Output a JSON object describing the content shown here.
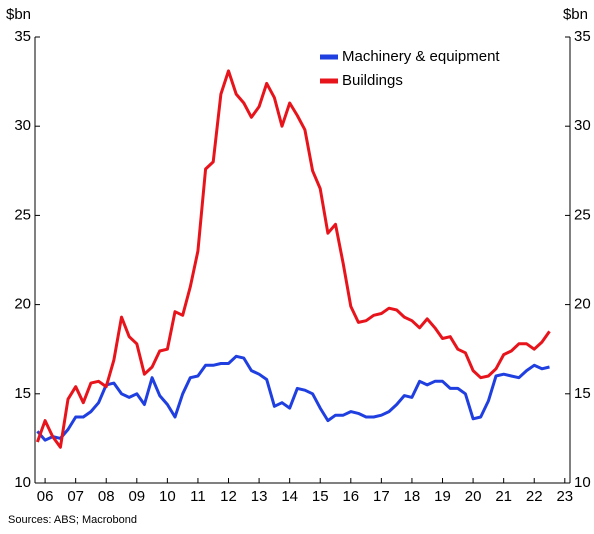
{
  "chart_data": {
    "type": "line",
    "ylabel": "$bn",
    "y2label": "$bn",
    "source": "Sources: ABS; Macrobond",
    "xlim": [
      2005.67,
      2023.17
    ],
    "xticks": [
      {
        "value": 2006,
        "label": "06"
      },
      {
        "value": 2007,
        "label": "07"
      },
      {
        "value": 2008,
        "label": "08"
      },
      {
        "value": 2009,
        "label": "09"
      },
      {
        "value": 2010,
        "label": "10"
      },
      {
        "value": 2011,
        "label": "11"
      },
      {
        "value": 2012,
        "label": "12"
      },
      {
        "value": 2013,
        "label": "13"
      },
      {
        "value": 2014,
        "label": "14"
      },
      {
        "value": 2015,
        "label": "15"
      },
      {
        "value": 2016,
        "label": "16"
      },
      {
        "value": 2017,
        "label": "17"
      },
      {
        "value": 2018,
        "label": "18"
      },
      {
        "value": 2019,
        "label": "19"
      },
      {
        "value": 2020,
        "label": "20"
      },
      {
        "value": 2021,
        "label": "21"
      },
      {
        "value": 2022,
        "label": "22"
      },
      {
        "value": 2023,
        "label": "23"
      }
    ],
    "ylim": [
      10,
      35
    ],
    "yticks": [
      10,
      15,
      20,
      25,
      30,
      35
    ],
    "y2lim": [
      10,
      35
    ],
    "y2ticks": [
      10,
      15,
      20,
      25,
      30,
      35
    ],
    "x": [
      2005.75,
      2006,
      2006.25,
      2006.5,
      2006.75,
      2007,
      2007.25,
      2007.5,
      2007.75,
      2008,
      2008.25,
      2008.5,
      2008.75,
      2009,
      2009.25,
      2009.5,
      2009.75,
      2010,
      2010.25,
      2010.5,
      2010.75,
      2011,
      2011.25,
      2011.5,
      2011.75,
      2012,
      2012.25,
      2012.5,
      2012.75,
      2013,
      2013.25,
      2013.5,
      2013.75,
      2014,
      2014.25,
      2014.5,
      2014.75,
      2015,
      2015.25,
      2015.5,
      2015.75,
      2016,
      2016.25,
      2016.5,
      2016.75,
      2017,
      2017.25,
      2017.5,
      2017.75,
      2018,
      2018.25,
      2018.5,
      2018.75,
      2019,
      2019.25,
      2019.5,
      2019.75,
      2020,
      2020.25,
      2020.5,
      2020.75,
      2021,
      2021.25,
      2021.5,
      2021.75,
      2022,
      2022.25,
      2022.5
    ],
    "legend": "upper right",
    "series": [
      {
        "name": "Machinery & equipment",
        "color": "#1f3fe0",
        "values": [
          12.9,
          12.4,
          12.6,
          12.5,
          13.0,
          13.7,
          13.7,
          14.0,
          14.5,
          15.5,
          15.6,
          15.0,
          14.8,
          15.0,
          14.4,
          15.9,
          14.9,
          14.4,
          13.7,
          15.0,
          15.9,
          16.0,
          16.6,
          16.6,
          16.7,
          16.7,
          17.1,
          17.0,
          16.3,
          16.1,
          15.8,
          14.3,
          14.5,
          14.2,
          15.3,
          15.2,
          15.0,
          14.2,
          13.5,
          13.8,
          13.8,
          14.0,
          13.9,
          13.7,
          13.7,
          13.8,
          14.0,
          14.4,
          14.9,
          14.8,
          15.7,
          15.5,
          15.7,
          15.7,
          15.3,
          15.3,
          15.0,
          13.6,
          13.7,
          14.6,
          16.0,
          16.1,
          16.0,
          15.9,
          16.3,
          16.6,
          16.4,
          16.5
        ]
      },
      {
        "name": "Buildings",
        "color": "#e8141c",
        "values": [
          12.3,
          13.5,
          12.6,
          12.0,
          14.7,
          15.4,
          14.5,
          15.6,
          15.7,
          15.4,
          16.9,
          19.3,
          18.2,
          17.8,
          16.1,
          16.5,
          17.4,
          17.5,
          19.6,
          19.4,
          21.0,
          23.0,
          27.6,
          28.0,
          31.8,
          33.1,
          31.8,
          31.3,
          30.5,
          31.1,
          32.4,
          31.6,
          30.0,
          31.3,
          30.6,
          29.8,
          27.5,
          26.5,
          24.0,
          24.5,
          22.3,
          19.9,
          19.0,
          19.1,
          19.4,
          19.5,
          19.8,
          19.7,
          19.3,
          19.1,
          18.7,
          19.2,
          18.7,
          18.1,
          18.2,
          17.5,
          17.3,
          16.3,
          15.9,
          16.0,
          16.4,
          17.2,
          17.4,
          17.8,
          17.8,
          17.5,
          17.9,
          18.5
        ]
      }
    ]
  }
}
